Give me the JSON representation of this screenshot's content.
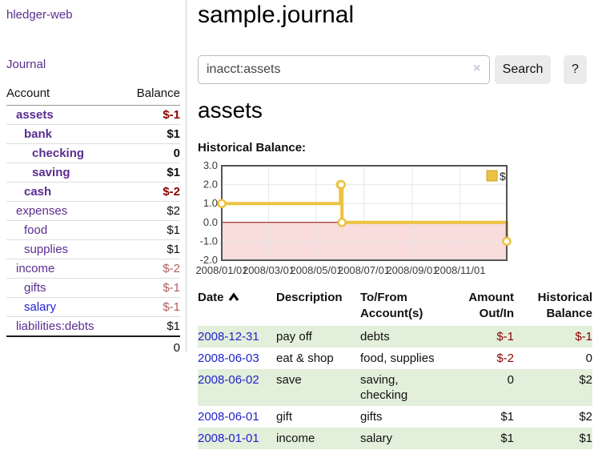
{
  "sidebar": {
    "app_title": "hledger-web",
    "nav": {
      "journal_label": "Journal"
    },
    "accounts_table": {
      "headers": {
        "account": "Account",
        "balance": "Balance"
      },
      "rows": [
        {
          "name": "assets",
          "depth": 1,
          "bold": true,
          "balance": "$-1"
        },
        {
          "name": "bank",
          "depth": 2,
          "bold": true,
          "balance": "$1"
        },
        {
          "name": "checking",
          "depth": 3,
          "bold": true,
          "balance": "0"
        },
        {
          "name": "saving",
          "depth": 3,
          "bold": true,
          "balance": "$1"
        },
        {
          "name": "cash",
          "depth": 2,
          "bold": true,
          "balance": "$-2"
        },
        {
          "name": "expenses",
          "depth": 1,
          "bold": false,
          "balance": "$2"
        },
        {
          "name": "food",
          "depth": 2,
          "bold": false,
          "balance": "$1"
        },
        {
          "name": "supplies",
          "depth": 2,
          "bold": false,
          "balance": "$1"
        },
        {
          "name": "income",
          "depth": 1,
          "bold": false,
          "balance": "$-2"
        },
        {
          "name": "gifts",
          "depth": 2,
          "bold": false,
          "balance": "$-1"
        },
        {
          "name": "salary",
          "depth": 2,
          "bold": false,
          "balance": "$-1",
          "visited": false
        },
        {
          "name": "liabilities:debts",
          "depth": 1,
          "bold": false,
          "balance": "$1"
        }
      ],
      "total": "0"
    }
  },
  "header": {
    "title": "sample.journal",
    "search": {
      "value": "inacct:assets",
      "clear_icon": "×",
      "button_label": "Search",
      "help_label": "?"
    }
  },
  "account_page": {
    "heading": "assets",
    "chart_label": "Historical Balance:"
  },
  "chart_data": {
    "type": "line",
    "step": true,
    "title": "Historical Balance:",
    "series": [
      {
        "name": "$",
        "color": "#EDC240",
        "points": [
          {
            "x": "2008-01-01",
            "y": 1
          },
          {
            "x": "2008-06-01",
            "y": 2
          },
          {
            "x": "2008-06-02",
            "y": 2
          },
          {
            "x": "2008-06-03",
            "y": 0
          },
          {
            "x": "2008-12-31",
            "y": -1
          }
        ]
      }
    ],
    "xlim": [
      "2008-01-01",
      "2008-12-31"
    ],
    "ylim": [
      -2,
      3
    ],
    "x_ticks": [
      {
        "date": "2008-01-01",
        "label": "2008/01/01"
      },
      {
        "date": "2008-03-01",
        "label": "2008/03/01"
      },
      {
        "date": "2008-05-01",
        "label": "2008/05/01"
      },
      {
        "date": "2008-07-01",
        "label": "2008/07/01"
      },
      {
        "date": "2008-09-01",
        "label": "2008/09/01"
      },
      {
        "date": "2008-11-01",
        "label": "2008/11/01"
      }
    ],
    "y_ticks": [
      "3.0",
      "2.0",
      "1.0",
      "0.0",
      "-1.0",
      "-2.0"
    ],
    "grid": true,
    "legend": {
      "label": "$",
      "position": "top-right"
    },
    "negative_region_color": "#f9dcdc",
    "zero_line_color": "#8b0000",
    "grid_line_color": "#e7e7e7",
    "border_color": "#545454"
  },
  "register_table": {
    "headers": {
      "date": "Date",
      "description": "Description",
      "accounts": "To/From Account(s)",
      "amount": "Amount Out/In",
      "balance": "Historical Balance"
    },
    "sort": {
      "column": "date",
      "direction": "ascending"
    },
    "rows": [
      {
        "date": "2008-12-31",
        "description": "pay off",
        "accounts": "debts",
        "amount": "$-1",
        "balance": "$-1"
      },
      {
        "date": "2008-06-03",
        "description": "eat & shop",
        "accounts": "food, supplies",
        "amount": "$-2",
        "balance": "0"
      },
      {
        "date": "2008-06-02",
        "description": "save",
        "accounts": "saving, checking",
        "amount": "0",
        "balance": "$2"
      },
      {
        "date": "2008-06-01",
        "description": "gift",
        "accounts": "gifts",
        "amount": "$1",
        "balance": "$2"
      },
      {
        "date": "2008-01-01",
        "description": "income",
        "accounts": "salary",
        "amount": "$1",
        "balance": "$1"
      }
    ]
  },
  "colors": {
    "link_purple": "#5b2d90",
    "link_blue": "#2222cc",
    "negative_strong": "#8b0000",
    "negative_soft": "#b25c5c",
    "row_stripe_green": "#e2efda",
    "series_gold": "#EDC240"
  }
}
